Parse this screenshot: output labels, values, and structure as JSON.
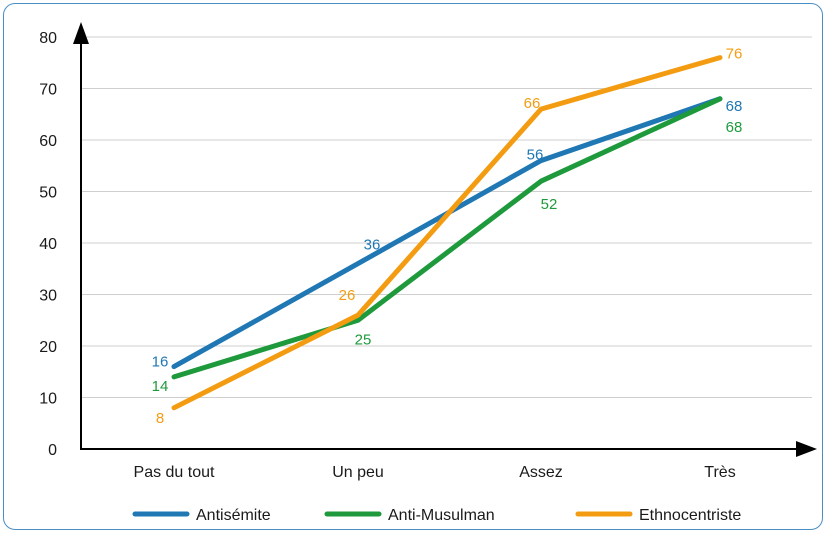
{
  "chart_data": {
    "type": "line",
    "categories": [
      "Pas du tout",
      "Un peu",
      "Assez",
      "Très"
    ],
    "ylim": [
      0,
      80
    ],
    "yticks": [
      0,
      10,
      20,
      30,
      40,
      50,
      60,
      70,
      80
    ],
    "grid": true,
    "legend_position": "bottom",
    "series": [
      {
        "name": "Antisémite",
        "color": "#1f77b4",
        "values": [
          16,
          36,
          56,
          68
        ]
      },
      {
        "name": "Anti-Musulman",
        "color": "#1e9a3c",
        "values": [
          14,
          25,
          52,
          68
        ]
      },
      {
        "name": "Ethnocentriste",
        "color": "#f39c12",
        "values": [
          8,
          26,
          66,
          76
        ]
      }
    ]
  }
}
